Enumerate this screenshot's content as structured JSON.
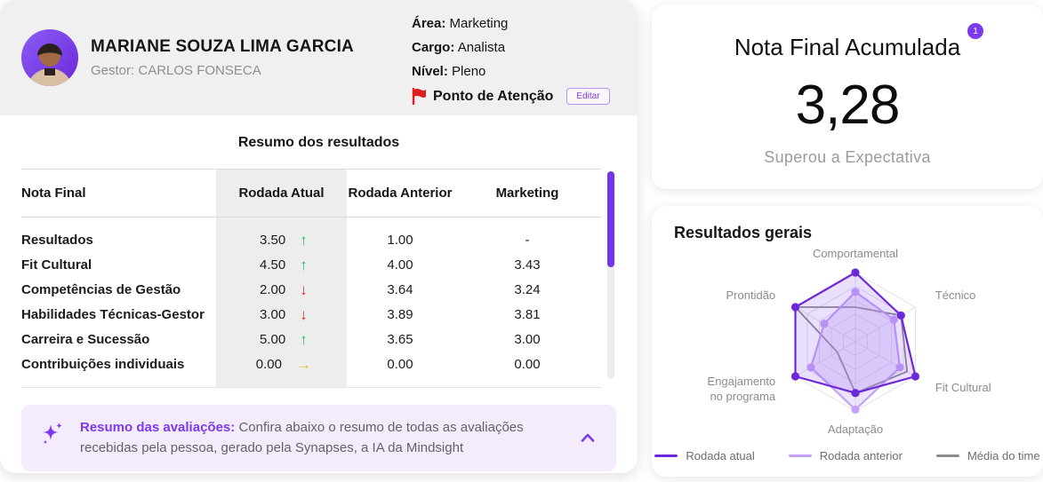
{
  "profile": {
    "name": "MARIANE SOUZA LIMA GARCIA",
    "manager_label": "Gestor:",
    "manager_name": "CARLOS FONSECA",
    "fields": [
      {
        "label": "Área:",
        "value": "Marketing"
      },
      {
        "label": "Cargo:",
        "value": "Analista"
      },
      {
        "label": "Nível:",
        "value": "Pleno"
      }
    ],
    "attention_flag_label": "Ponto de Atenção",
    "edit_button_label": "Editar"
  },
  "results_table": {
    "title": "Resumo dos resultados",
    "columns": [
      "Nota Final",
      "Rodada Atual",
      "Rodada Anterior",
      "Marketing"
    ],
    "rows": [
      {
        "label": "Resultados",
        "current": "3.50",
        "trend": "up",
        "previous": "1.00",
        "area": "-"
      },
      {
        "label": "Fit Cultural",
        "current": "4.50",
        "trend": "up",
        "previous": "4.00",
        "area": "3.43"
      },
      {
        "label": "Competências de Gestão",
        "current": "2.00",
        "trend": "down",
        "previous": "3.64",
        "area": "3.24"
      },
      {
        "label": "Habilidades Técnicas-Gestor",
        "current": "3.00",
        "trend": "down",
        "previous": "3.89",
        "area": "3.81"
      },
      {
        "label": "Carreira e Sucessão",
        "current": "5.00",
        "trend": "up",
        "previous": "3.65",
        "area": "3.00"
      },
      {
        "label": "Contribuições individuais",
        "current": "0.00",
        "trend": "flat",
        "previous": "0.00",
        "area": "0.00"
      }
    ],
    "trend_icons": {
      "up": "↑",
      "down": "↓",
      "flat": "→"
    }
  },
  "ai_banner": {
    "title": "Resumo das avaliações:",
    "text": "Confira abaixo o resumo de todas as avaliações recebidas pela pessoa, gerado pela Synapses, a IA da Mindsight"
  },
  "score_card": {
    "title": "Nota Final Acumulada",
    "badge": "1",
    "value": "3,28",
    "subtitle": "Superou a Expectativa"
  },
  "radar_card": {
    "title": "Resultados gerais"
  },
  "chart_data": {
    "type": "radar",
    "categories": [
      "Comportamental",
      "Técnico",
      "Fit Cultural",
      "Adaptação",
      "Engajamento no programa",
      "Prontidão"
    ],
    "series": [
      {
        "name": "Rodada atual",
        "color": "#6D28D9",
        "fill": "rgba(124,58,237,0.16)",
        "dots": true,
        "values": [
          5.0,
          3.8,
          5.0,
          3.7,
          5.0,
          5.0
        ]
      },
      {
        "name": "Rodada anterior",
        "color": "#C3A2F8",
        "fill": "rgba(196,165,249,0.30)",
        "dots": true,
        "values": [
          3.6,
          3.2,
          3.7,
          4.9,
          3.7,
          2.6
        ]
      },
      {
        "name": "Média do time",
        "color": "#8C8C8C",
        "fill": "none",
        "dots": false,
        "values": [
          2.5,
          3.8,
          4.3,
          3.7,
          1.5,
          5.0
        ]
      }
    ],
    "scale": [
      0,
      5
    ],
    "rings": 5,
    "grid": true,
    "legend_position": "bottom"
  },
  "colors": {
    "accent": "#7C3AED",
    "header_bg": "#F0F0F0",
    "banner_bg": "#F4EBFC",
    "flag_red": "#D91F1F",
    "scrollbar": "#7433EE",
    "grid_line": "#E2E2E2",
    "trend": {
      "up": "#2DB563",
      "down": "#DB2B22",
      "flat": "#E9BE12"
    }
  }
}
